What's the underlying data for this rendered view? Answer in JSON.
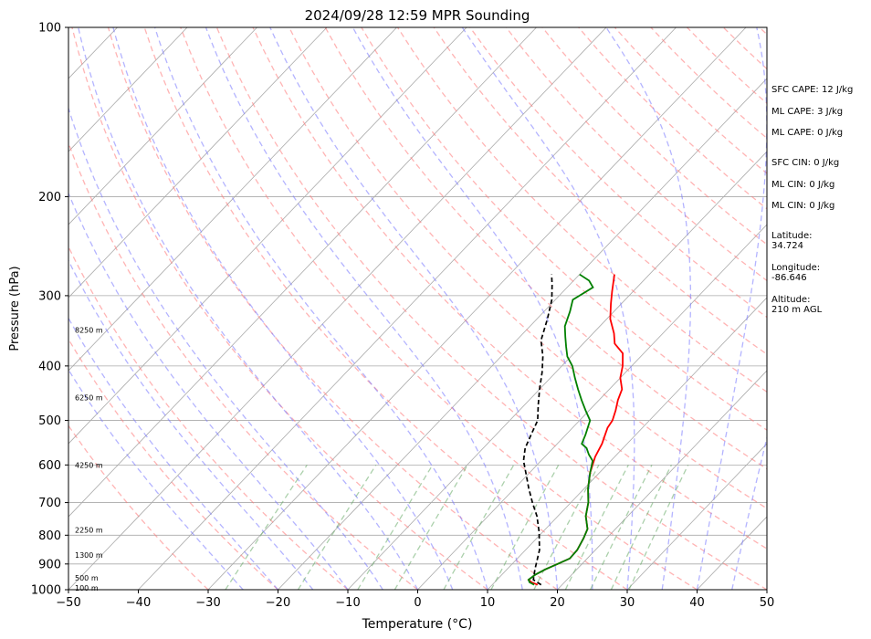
{
  "chart_data": {
    "type": "line",
    "title": "2024/09/28 12:59 MPR Sounding",
    "xlabel": "Temperature (°C)",
    "ylabel": "Pressure (hPa)",
    "xlim": [
      -50,
      50
    ],
    "ylim": [
      1000,
      100
    ],
    "y_scale": "log",
    "x_ticks": [
      "−50",
      "−40",
      "−30",
      "−20",
      "−10",
      "0",
      "10",
      "20",
      "30",
      "40",
      "50"
    ],
    "y_ticks": [
      100,
      200,
      300,
      400,
      500,
      600,
      700,
      800,
      900,
      1000
    ],
    "grid": true,
    "height_labels": [
      {
        "p": 345,
        "text": "8250 m"
      },
      {
        "p": 455,
        "text": "6250 m"
      },
      {
        "p": 600,
        "text": "4250 m"
      },
      {
        "p": 783,
        "text": "2250 m"
      },
      {
        "p": 868,
        "text": "1300 m"
      },
      {
        "p": 953,
        "text": "500 m"
      },
      {
        "p": 993,
        "text": "100 m"
      }
    ],
    "series": [
      {
        "color": "#ff0000",
        "points": [
          [
            16.5,
            980
          ],
          [
            15.3,
            970
          ],
          [
            14.5,
            960
          ],
          [
            14.8,
            940
          ],
          [
            15.5,
            920
          ],
          [
            16.5,
            900
          ],
          [
            17.5,
            880
          ],
          [
            17.4,
            850
          ],
          [
            16.7,
            810
          ],
          [
            16.0,
            780
          ],
          [
            14.0,
            740
          ],
          [
            12.5,
            700
          ],
          [
            10.5,
            660
          ],
          [
            8.7,
            620
          ],
          [
            7.2,
            580
          ],
          [
            6.4,
            550
          ],
          [
            5.6,
            530
          ],
          [
            5.0,
            515
          ],
          [
            4.7,
            500
          ],
          [
            3.8,
            480
          ],
          [
            2.7,
            460
          ],
          [
            1.8,
            440
          ],
          [
            0.0,
            420
          ],
          [
            -1.3,
            400
          ],
          [
            -3.0,
            380
          ],
          [
            -5.5,
            365
          ],
          [
            -7.0,
            350
          ],
          [
            -9.5,
            330
          ],
          [
            -11.5,
            310
          ],
          [
            -13.0,
            295
          ],
          [
            -15.0,
            275
          ]
        ]
      },
      {
        "color": "#008000",
        "points": [
          [
            16.0,
            980
          ],
          [
            15.0,
            970
          ],
          [
            14.5,
            960
          ],
          [
            14.8,
            940
          ],
          [
            15.5,
            920
          ],
          [
            16.5,
            900
          ],
          [
            17.5,
            880
          ],
          [
            17.4,
            850
          ],
          [
            16.7,
            810
          ],
          [
            16.0,
            780
          ],
          [
            14.0,
            740
          ],
          [
            12.5,
            700
          ],
          [
            10.5,
            660
          ],
          [
            8.7,
            620
          ],
          [
            7.4,
            590
          ],
          [
            6.0,
            575
          ],
          [
            4.8,
            560
          ],
          [
            3.5,
            550
          ],
          [
            2.8,
            530
          ],
          [
            1.5,
            500
          ],
          [
            -0.5,
            480
          ],
          [
            -2.5,
            460
          ],
          [
            -4.5,
            440
          ],
          [
            -6.5,
            420
          ],
          [
            -8.5,
            400
          ],
          [
            -10.5,
            385
          ],
          [
            -12.0,
            370
          ],
          [
            -13.5,
            355
          ],
          [
            -15.0,
            340
          ],
          [
            -16.3,
            320
          ],
          [
            -17.5,
            305
          ],
          [
            -16.3,
            290
          ],
          [
            -17.8,
            282
          ],
          [
            -20.0,
            275
          ]
        ]
      },
      {
        "color": "#000000",
        "dashed": true,
        "points": [
          [
            17.0,
            980
          ],
          [
            15.2,
            960
          ],
          [
            14.0,
            920
          ],
          [
            12.0,
            850
          ],
          [
            9.5,
            790
          ],
          [
            7.0,
            740
          ],
          [
            4.5,
            700
          ],
          [
            2.0,
            660
          ],
          [
            -0.5,
            620
          ],
          [
            -2.5,
            590
          ],
          [
            -4.0,
            560
          ],
          [
            -5.0,
            530
          ],
          [
            -6.0,
            500
          ],
          [
            -8.0,
            470
          ],
          [
            -10.0,
            440
          ],
          [
            -12.0,
            410
          ],
          [
            -14.0,
            385
          ],
          [
            -16.5,
            360
          ],
          [
            -18.5,
            330
          ],
          [
            -20.5,
            305
          ],
          [
            -22.5,
            287
          ],
          [
            -24.0,
            275
          ]
        ]
      }
    ],
    "annotations": [
      {
        "key": "sfc_cape",
        "text": "SFC CAPE: 12 J/kg"
      },
      {
        "key": "ml_cape",
        "text": "ML CAPE: 3 J/kg"
      },
      {
        "key": "ml_cape_2",
        "text": "ML CAPE: 0 J/kg"
      },
      {
        "key": "sfc_cin",
        "text": "SFC CIN: 0 J/kg"
      },
      {
        "key": "ml_cin",
        "text": "ML CIN: 0 J/kg"
      },
      {
        "key": "ml_cin_2",
        "text": "ML CIN: 0 J/kg"
      },
      {
        "key": "latitude",
        "text": "Latitude:\n34.724"
      },
      {
        "key": "longitude",
        "text": "Longitude:\n-86.646"
      },
      {
        "key": "altitude",
        "text": "Altitude:\n210 m AGL"
      }
    ],
    "colors": {
      "isotherm": "#aaaaaa",
      "dry_adiabat": "#ff7777",
      "moist_adiabat": "#7777ff",
      "mixing_ratio": "#66aa66",
      "temperature": "#ff0000",
      "dewpoint": "#008000",
      "parcel": "#000000"
    }
  }
}
